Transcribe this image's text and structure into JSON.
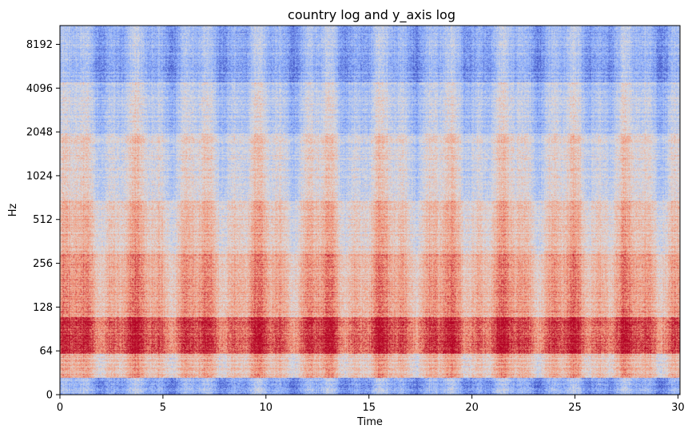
{
  "chart_data": {
    "type": "heatmap",
    "title": "country log and y_axis log",
    "xlabel": "Time",
    "ylabel": "Hz",
    "x_scale": "linear",
    "y_scale": "symlog",
    "xlim": [
      0,
      30.1
    ],
    "ylim": [
      0,
      11025
    ],
    "x_ticks": [
      0,
      5,
      10,
      15,
      20,
      25,
      30
    ],
    "y_ticks": [
      0,
      64,
      128,
      256,
      512,
      1024,
      2048,
      4096,
      8192
    ],
    "y_tick_labels": [
      "0",
      "64",
      "128",
      "256",
      "512",
      "1024",
      "2048",
      "4096",
      "8192"
    ],
    "x_tick_labels": [
      "0",
      "5",
      "10",
      "15",
      "20",
      "25",
      "30"
    ],
    "colormap": "coolwarm",
    "colormap_colors": [
      "#3b4cc0",
      "#aac7fd",
      "#dddcdc",
      "#f7b89c",
      "#b40426"
    ],
    "grid": false,
    "legend": "none",
    "strong_bands": [
      {
        "hz_low": 60,
        "hz_high": 110,
        "intensity": "high"
      },
      {
        "hz_low": 140,
        "hz_high": 300,
        "intensity": "medium-high"
      },
      {
        "hz_low": 300,
        "hz_high": 700,
        "intensity": "medium"
      }
    ]
  }
}
